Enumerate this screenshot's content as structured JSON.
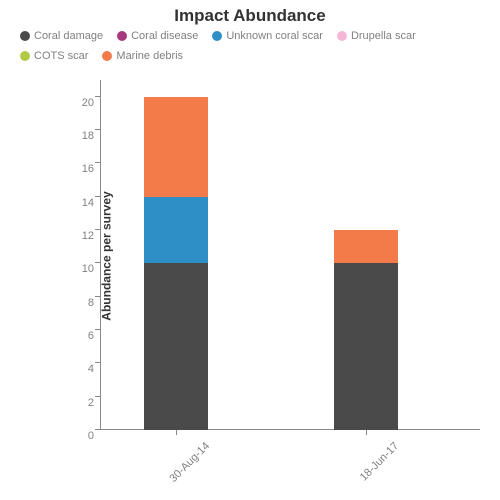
{
  "chart": {
    "type": "stacked-bar",
    "title": "Impact Abundance",
    "title_fontsize": 17,
    "ylabel": "Abundance per survey",
    "ylabel_fontsize": 12,
    "ylim": [
      0,
      21
    ],
    "ytick_step": 2,
    "yticks": [
      0,
      2,
      4,
      6,
      8,
      10,
      12,
      14,
      16,
      18,
      20
    ],
    "tick_fontsize": 11,
    "legend_fontsize": 11,
    "background_color": "#ffffff",
    "axis_color": "#888888",
    "text_color": "#808080",
    "title_color": "#333333",
    "bar_width": 0.22,
    "categories": [
      "30-Aug-14",
      "18-Jun-17"
    ],
    "series": [
      {
        "name": "Coral damage",
        "color": "#4a4a4a",
        "values": [
          10,
          10
        ]
      },
      {
        "name": "Coral disease",
        "color": "#a63a7d",
        "values": [
          0,
          0
        ]
      },
      {
        "name": "Unknown coral scar",
        "color": "#2d8fc6",
        "values": [
          4,
          0
        ]
      },
      {
        "name": "Drupella scar",
        "color": "#f5b6d8",
        "values": [
          0,
          0
        ]
      },
      {
        "name": "COTS scar",
        "color": "#b0c946",
        "values": [
          0,
          0
        ]
      },
      {
        "name": "Marine debris",
        "color": "#f37b4a",
        "values": [
          6,
          2
        ]
      }
    ]
  }
}
